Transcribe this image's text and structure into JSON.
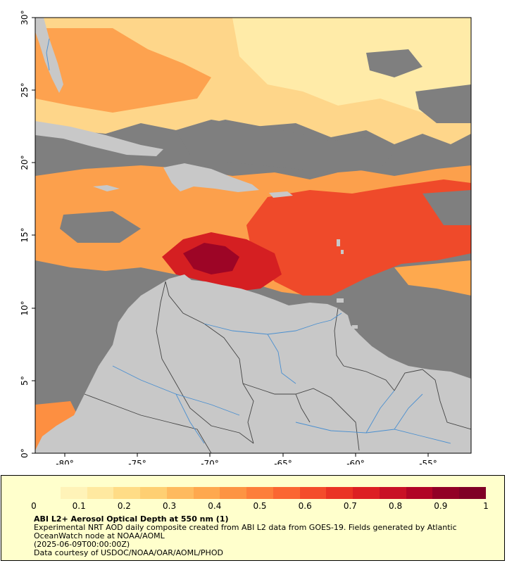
{
  "map": {
    "lat_labels": [
      "30°",
      "25°",
      "20°",
      "15°",
      "10°",
      "5°",
      "0°"
    ],
    "lon_labels": [
      "-80°",
      "-75°",
      "-70°",
      "-65°",
      "-60°",
      "-55°"
    ],
    "colors": {
      "nodata": "#7f7f7f",
      "land": "#c8c8c8",
      "border": "#444444",
      "river": "#4a8fd0"
    }
  },
  "legend": {
    "ticks": [
      "0",
      "0.1",
      "0.2",
      "0.3",
      "0.4",
      "0.5",
      "0.6",
      "0.7",
      "0.8",
      "0.9",
      "1"
    ],
    "title": "ABI L2+ Aerosol Optical Depth at 550 nm (1)",
    "line1": "Experimental NRT AOD daily composite created from ABI L2 data from GOES-19. Fields generated by Atlantic OceanWatch node at NOAA/AOML",
    "line2": "(2025-06-09T00:00:00Z)",
    "line3": "Data courtesy of USDOC/NOAA/OAR/AOML/PHOD",
    "palette": [
      "#ffffcc",
      "#fff3b8",
      "#ffe9a0",
      "#ffdc86",
      "#fecf72",
      "#feba5e",
      "#fea84e",
      "#fd9443",
      "#fd7e3a",
      "#fb6631",
      "#f44c2b",
      "#ea3324",
      "#dd1f23",
      "#c91126",
      "#b10526",
      "#920026",
      "#800026"
    ]
  }
}
